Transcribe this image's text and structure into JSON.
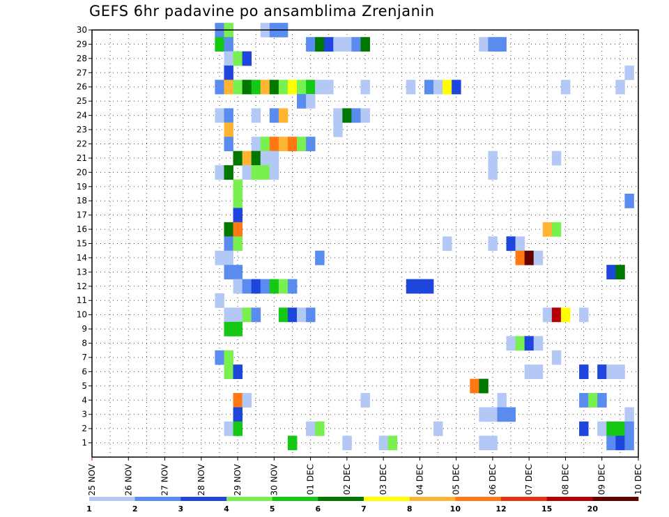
{
  "chart_data": {
    "type": "heatmap",
    "title": "GEFS 6hr padavine po ansamblima Zrenjanin",
    "xlabel": "",
    "ylabel": "",
    "x_tick_labels": [
      "25 NOV",
      "26 NOV",
      "27 NOV",
      "28 NOV",
      "29 NOV",
      "30 NOV",
      "01 DEC",
      "02 DEC",
      "03 DEC",
      "04 DEC",
      "05 DEC",
      "06 DEC",
      "07 DEC",
      "08 DEC",
      "09 DEC",
      "10 DEC"
    ],
    "x_unit": "6-hour step from 25 NOV 00Z",
    "x_range": [
      0,
      60
    ],
    "members": [
      1,
      2,
      3,
      4,
      5,
      6,
      7,
      8,
      9,
      10,
      11,
      12,
      13,
      14,
      15,
      16,
      17,
      18,
      19,
      20,
      21,
      22,
      23,
      24,
      25,
      26,
      27,
      28,
      29,
      30
    ],
    "y_range": [
      0,
      30
    ],
    "legend": {
      "levels": [
        "1",
        "2",
        "3",
        "4",
        "5",
        "6",
        "7",
        "8",
        "10",
        "12",
        "15",
        "20"
      ],
      "colors": [
        "#b4c8f5",
        "#5a8cf0",
        "#1e46dc",
        "#78f050",
        "#14c814",
        "#007800",
        "#ffff00",
        "#ffb432",
        "#ff7814",
        "#e63214",
        "#b40000",
        "#640000"
      ]
    },
    "cells": [
      {
        "m": 30,
        "t": [
          14
        ],
        "c": 2
      },
      {
        "m": 30,
        "t": [
          15
        ],
        "c": 4
      },
      {
        "m": 30,
        "t": [
          19
        ],
        "c": 1
      },
      {
        "m": 30,
        "t": [
          20,
          21
        ],
        "c": 2
      },
      {
        "m": 29,
        "t": [
          14
        ],
        "c": 5
      },
      {
        "m": 29,
        "t": [
          15
        ],
        "c": 2
      },
      {
        "m": 29,
        "t": [
          24
        ],
        "c": 2
      },
      {
        "m": 29,
        "t": [
          25
        ],
        "c": 6
      },
      {
        "m": 29,
        "t": [
          26
        ],
        "c": 3
      },
      {
        "m": 29,
        "t": [
          27,
          28
        ],
        "c": 1
      },
      {
        "m": 29,
        "t": [
          29
        ],
        "c": 2
      },
      {
        "m": 29,
        "t": [
          30
        ],
        "c": 6
      },
      {
        "m": 29,
        "t": [
          43
        ],
        "c": 1
      },
      {
        "m": 29,
        "t": [
          44,
          45
        ],
        "c": 2
      },
      {
        "m": 28,
        "t": [
          15
        ],
        "c": 1
      },
      {
        "m": 28,
        "t": [
          16
        ],
        "c": 4
      },
      {
        "m": 28,
        "t": [
          17
        ],
        "c": 3
      },
      {
        "m": 27,
        "t": [
          15
        ],
        "c": 3
      },
      {
        "m": 27,
        "t": [
          59
        ],
        "c": 1
      },
      {
        "m": 26,
        "t": [
          14
        ],
        "c": 2
      },
      {
        "m": 26,
        "t": [
          15
        ],
        "c": 8
      },
      {
        "m": 26,
        "t": [
          16
        ],
        "c": 4
      },
      {
        "m": 26,
        "t": [
          17
        ],
        "c": 6
      },
      {
        "m": 26,
        "t": [
          18
        ],
        "c": 5
      },
      {
        "m": 26,
        "t": [
          19
        ],
        "c": 8
      },
      {
        "m": 26,
        "t": [
          20
        ],
        "c": 6
      },
      {
        "m": 26,
        "t": [
          21
        ],
        "c": 4
      },
      {
        "m": 26,
        "t": [
          22
        ],
        "c": 7
      },
      {
        "m": 26,
        "t": [
          23
        ],
        "c": 4
      },
      {
        "m": 26,
        "t": [
          24
        ],
        "c": 5
      },
      {
        "m": 26,
        "t": [
          25,
          26
        ],
        "c": 1
      },
      {
        "m": 26,
        "t": [
          30
        ],
        "c": 1
      },
      {
        "m": 26,
        "t": [
          35
        ],
        "c": 1
      },
      {
        "m": 26,
        "t": [
          37
        ],
        "c": 2
      },
      {
        "m": 26,
        "t": [
          38
        ],
        "c": 1
      },
      {
        "m": 26,
        "t": [
          39
        ],
        "c": 7
      },
      {
        "m": 26,
        "t": [
          40
        ],
        "c": 3
      },
      {
        "m": 26,
        "t": [
          52
        ],
        "c": 1
      },
      {
        "m": 26,
        "t": [
          58
        ],
        "c": 1
      },
      {
        "m": 25,
        "t": [
          23
        ],
        "c": 2
      },
      {
        "m": 25,
        "t": [
          24
        ],
        "c": 1
      },
      {
        "m": 24,
        "t": [
          14
        ],
        "c": 1
      },
      {
        "m": 24,
        "t": [
          15
        ],
        "c": 2
      },
      {
        "m": 24,
        "t": [
          18
        ],
        "c": 1
      },
      {
        "m": 24,
        "t": [
          20
        ],
        "c": 2
      },
      {
        "m": 24,
        "t": [
          21
        ],
        "c": 8
      },
      {
        "m": 24,
        "t": [
          27
        ],
        "c": 1
      },
      {
        "m": 24,
        "t": [
          28
        ],
        "c": 6
      },
      {
        "m": 24,
        "t": [
          29
        ],
        "c": 2
      },
      {
        "m": 24,
        "t": [
          30
        ],
        "c": 1
      },
      {
        "m": 23,
        "t": [
          15
        ],
        "c": 8
      },
      {
        "m": 23,
        "t": [
          27
        ],
        "c": 1
      },
      {
        "m": 22,
        "t": [
          15
        ],
        "c": 2
      },
      {
        "m": 22,
        "t": [
          18
        ],
        "c": 1
      },
      {
        "m": 22,
        "t": [
          19
        ],
        "c": 4
      },
      {
        "m": 22,
        "t": [
          20
        ],
        "c": 9
      },
      {
        "m": 22,
        "t": [
          21
        ],
        "c": 8
      },
      {
        "m": 22,
        "t": [
          22
        ],
        "c": 9
      },
      {
        "m": 22,
        "t": [
          23
        ],
        "c": 4
      },
      {
        "m": 22,
        "t": [
          24
        ],
        "c": 2
      },
      {
        "m": 21,
        "t": [
          16
        ],
        "c": 6
      },
      {
        "m": 21,
        "t": [
          17
        ],
        "c": 8
      },
      {
        "m": 21,
        "t": [
          18
        ],
        "c": 6
      },
      {
        "m": 21,
        "t": [
          19,
          20
        ],
        "c": 1
      },
      {
        "m": 21,
        "t": [
          44
        ],
        "c": 1
      },
      {
        "m": 21,
        "t": [
          51
        ],
        "c": 1
      },
      {
        "m": 20,
        "t": [
          14
        ],
        "c": 1
      },
      {
        "m": 20,
        "t": [
          15
        ],
        "c": 6
      },
      {
        "m": 20,
        "t": [
          17
        ],
        "c": 1
      },
      {
        "m": 20,
        "t": [
          18,
          19
        ],
        "c": 4
      },
      {
        "m": 20,
        "t": [
          20
        ],
        "c": 1
      },
      {
        "m": 20,
        "t": [
          44
        ],
        "c": 1
      },
      {
        "m": 19,
        "t": [
          16
        ],
        "c": 4
      },
      {
        "m": 18,
        "t": [
          16
        ],
        "c": 4
      },
      {
        "m": 18,
        "t": [
          59
        ],
        "c": 2
      },
      {
        "m": 17,
        "t": [
          16
        ],
        "c": 3
      },
      {
        "m": 16,
        "t": [
          15
        ],
        "c": 6
      },
      {
        "m": 16,
        "t": [
          16
        ],
        "c": 9
      },
      {
        "m": 16,
        "t": [
          50
        ],
        "c": 8
      },
      {
        "m": 16,
        "t": [
          51
        ],
        "c": 4
      },
      {
        "m": 15,
        "t": [
          15
        ],
        "c": 2
      },
      {
        "m": 15,
        "t": [
          16
        ],
        "c": 4
      },
      {
        "m": 15,
        "t": [
          39
        ],
        "c": 1
      },
      {
        "m": 15,
        "t": [
          44
        ],
        "c": 1
      },
      {
        "m": 15,
        "t": [
          46
        ],
        "c": 3
      },
      {
        "m": 15,
        "t": [
          47
        ],
        "c": 1
      },
      {
        "m": 14,
        "t": [
          14,
          15
        ],
        "c": 1
      },
      {
        "m": 14,
        "t": [
          25
        ],
        "c": 2
      },
      {
        "m": 14,
        "t": [
          47
        ],
        "c": 9
      },
      {
        "m": 14,
        "t": [
          48
        ],
        "c": 12
      },
      {
        "m": 14,
        "t": [
          49
        ],
        "c": 1
      },
      {
        "m": 13,
        "t": [
          15,
          16
        ],
        "c": 2
      },
      {
        "m": 13,
        "t": [
          57
        ],
        "c": 3
      },
      {
        "m": 13,
        "t": [
          58
        ],
        "c": 6
      },
      {
        "m": 12,
        "t": [
          16
        ],
        "c": 1
      },
      {
        "m": 12,
        "t": [
          17
        ],
        "c": 2
      },
      {
        "m": 12,
        "t": [
          18
        ],
        "c": 3
      },
      {
        "m": 12,
        "t": [
          19
        ],
        "c": 2
      },
      {
        "m": 12,
        "t": [
          20
        ],
        "c": 5
      },
      {
        "m": 12,
        "t": [
          21
        ],
        "c": 4
      },
      {
        "m": 12,
        "t": [
          22
        ],
        "c": 2
      },
      {
        "m": 12,
        "t": [
          35,
          36,
          37
        ],
        "c": 3
      },
      {
        "m": 11,
        "t": [
          14
        ],
        "c": 1
      },
      {
        "m": 10,
        "t": [
          15,
          16
        ],
        "c": 1
      },
      {
        "m": 10,
        "t": [
          17
        ],
        "c": 4
      },
      {
        "m": 10,
        "t": [
          18
        ],
        "c": 2
      },
      {
        "m": 10,
        "t": [
          21
        ],
        "c": 5
      },
      {
        "m": 10,
        "t": [
          22
        ],
        "c": 3
      },
      {
        "m": 10,
        "t": [
          23
        ],
        "c": 1
      },
      {
        "m": 10,
        "t": [
          24
        ],
        "c": 2
      },
      {
        "m": 10,
        "t": [
          50
        ],
        "c": 1
      },
      {
        "m": 10,
        "t": [
          51
        ],
        "c": 11
      },
      {
        "m": 10,
        "t": [
          52
        ],
        "c": 7
      },
      {
        "m": 10,
        "t": [
          54
        ],
        "c": 1
      },
      {
        "m": 9,
        "t": [
          15,
          16
        ],
        "c": 5
      },
      {
        "m": 8,
        "t": [
          46
        ],
        "c": 1
      },
      {
        "m": 8,
        "t": [
          47
        ],
        "c": 4
      },
      {
        "m": 8,
        "t": [
          48
        ],
        "c": 3
      },
      {
        "m": 8,
        "t": [
          49
        ],
        "c": 1
      },
      {
        "m": 7,
        "t": [
          14
        ],
        "c": 2
      },
      {
        "m": 7,
        "t": [
          15
        ],
        "c": 4
      },
      {
        "m": 7,
        "t": [
          51
        ],
        "c": 1
      },
      {
        "m": 6,
        "t": [
          15
        ],
        "c": 4
      },
      {
        "m": 6,
        "t": [
          16
        ],
        "c": 3
      },
      {
        "m": 6,
        "t": [
          48,
          49
        ],
        "c": 1
      },
      {
        "m": 6,
        "t": [
          54
        ],
        "c": 3
      },
      {
        "m": 6,
        "t": [
          56
        ],
        "c": 3
      },
      {
        "m": 6,
        "t": [
          57,
          58
        ],
        "c": 1
      },
      {
        "m": 5,
        "t": [
          42
        ],
        "c": 9
      },
      {
        "m": 5,
        "t": [
          43
        ],
        "c": 6
      },
      {
        "m": 4,
        "t": [
          16
        ],
        "c": 9
      },
      {
        "m": 4,
        "t": [
          17
        ],
        "c": 1
      },
      {
        "m": 4,
        "t": [
          30
        ],
        "c": 1
      },
      {
        "m": 4,
        "t": [
          45
        ],
        "c": 1
      },
      {
        "m": 4,
        "t": [
          54
        ],
        "c": 2
      },
      {
        "m": 4,
        "t": [
          55
        ],
        "c": 4
      },
      {
        "m": 4,
        "t": [
          56
        ],
        "c": 2
      },
      {
        "m": 3,
        "t": [
          16
        ],
        "c": 3
      },
      {
        "m": 3,
        "t": [
          43,
          44
        ],
        "c": 1
      },
      {
        "m": 3,
        "t": [
          45,
          46
        ],
        "c": 2
      },
      {
        "m": 3,
        "t": [
          59
        ],
        "c": 1
      },
      {
        "m": 2,
        "t": [
          15
        ],
        "c": 1
      },
      {
        "m": 2,
        "t": [
          16
        ],
        "c": 5
      },
      {
        "m": 2,
        "t": [
          24
        ],
        "c": 1
      },
      {
        "m": 2,
        "t": [
          25
        ],
        "c": 4
      },
      {
        "m": 2,
        "t": [
          38
        ],
        "c": 1
      },
      {
        "m": 2,
        "t": [
          54
        ],
        "c": 3
      },
      {
        "m": 2,
        "t": [
          56
        ],
        "c": 1
      },
      {
        "m": 2,
        "t": [
          57,
          58
        ],
        "c": 5
      },
      {
        "m": 2,
        "t": [
          59
        ],
        "c": 2
      },
      {
        "m": 1,
        "t": [
          22
        ],
        "c": 5
      },
      {
        "m": 1,
        "t": [
          28
        ],
        "c": 1
      },
      {
        "m": 1,
        "t": [
          32
        ],
        "c": 1
      },
      {
        "m": 1,
        "t": [
          33
        ],
        "c": 4
      },
      {
        "m": 1,
        "t": [
          43
        ],
        "c": 1
      },
      {
        "m": 1,
        "t": [
          44
        ],
        "c": 1
      },
      {
        "m": 1,
        "t": [
          57
        ],
        "c": 2
      },
      {
        "m": 1,
        "t": [
          58
        ],
        "c": 3
      },
      {
        "m": 1,
        "t": [
          59
        ],
        "c": 2
      }
    ]
  }
}
